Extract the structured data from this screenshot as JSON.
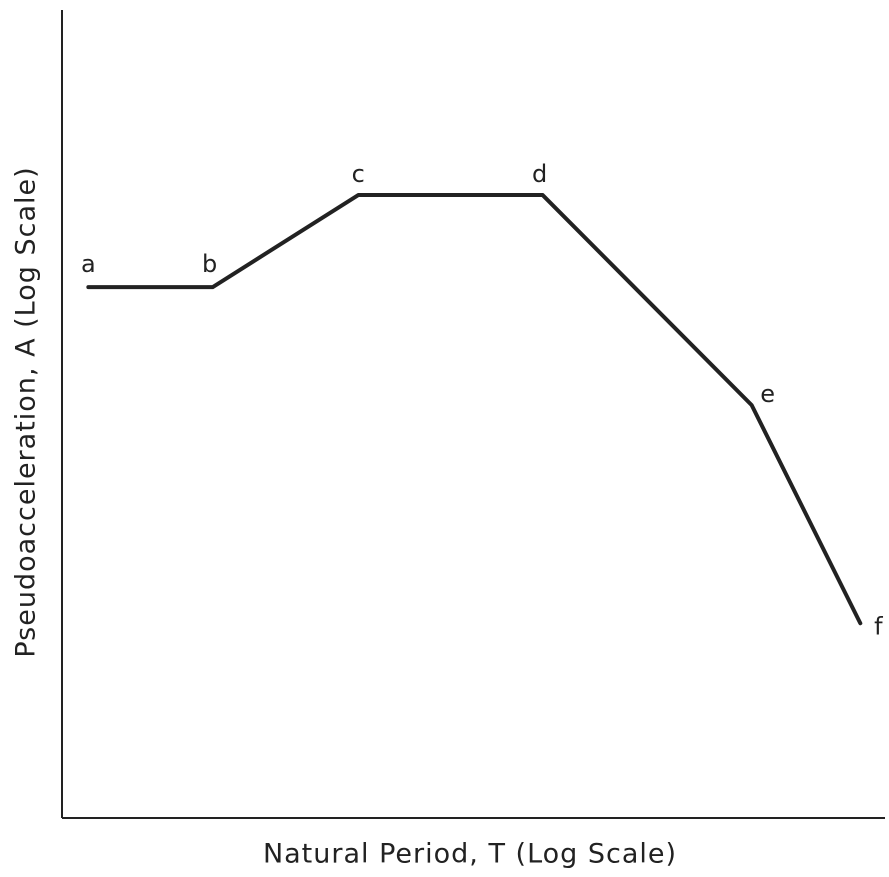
{
  "chart_data": {
    "type": "line",
    "x_label": "Natural Period, T (Log Scale)",
    "y_label": "Pseudoacceleration, A (Log Scale)",
    "x": [
      3.2,
      18.3,
      36.0,
      58.4,
      83.8,
      97.0
    ],
    "series": [
      {
        "color": "#222222",
        "values": [
          65.7,
          65.7,
          77.1,
          77.1,
          51.1,
          24.1
        ],
        "point_labels": [
          "a",
          "b",
          "c",
          "d",
          "e",
          "f"
        ]
      }
    ],
    "xlim": [
      0,
      100
    ],
    "ylim": [
      0,
      100
    ]
  }
}
